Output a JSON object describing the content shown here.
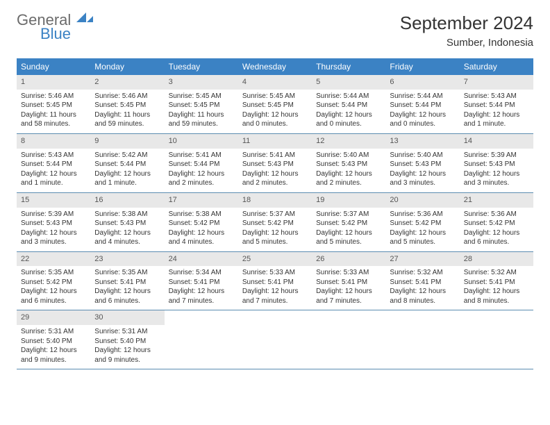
{
  "logo": {
    "text1": "General",
    "text2": "Blue"
  },
  "title": "September 2024",
  "location": "Sumber, Indonesia",
  "colors": {
    "header_bg": "#3b82c4",
    "header_text": "#ffffff",
    "daynum_bg": "#e8e8e8",
    "text": "#333333",
    "week_border": "#5a8bb0"
  },
  "day_labels": [
    "Sunday",
    "Monday",
    "Tuesday",
    "Wednesday",
    "Thursday",
    "Friday",
    "Saturday"
  ],
  "days": [
    {
      "n": "1",
      "sr": "Sunrise: 5:46 AM",
      "ss": "Sunset: 5:45 PM",
      "dl": "Daylight: 11 hours and 58 minutes."
    },
    {
      "n": "2",
      "sr": "Sunrise: 5:46 AM",
      "ss": "Sunset: 5:45 PM",
      "dl": "Daylight: 11 hours and 59 minutes."
    },
    {
      "n": "3",
      "sr": "Sunrise: 5:45 AM",
      "ss": "Sunset: 5:45 PM",
      "dl": "Daylight: 11 hours and 59 minutes."
    },
    {
      "n": "4",
      "sr": "Sunrise: 5:45 AM",
      "ss": "Sunset: 5:45 PM",
      "dl": "Daylight: 12 hours and 0 minutes."
    },
    {
      "n": "5",
      "sr": "Sunrise: 5:44 AM",
      "ss": "Sunset: 5:44 PM",
      "dl": "Daylight: 12 hours and 0 minutes."
    },
    {
      "n": "6",
      "sr": "Sunrise: 5:44 AM",
      "ss": "Sunset: 5:44 PM",
      "dl": "Daylight: 12 hours and 0 minutes."
    },
    {
      "n": "7",
      "sr": "Sunrise: 5:43 AM",
      "ss": "Sunset: 5:44 PM",
      "dl": "Daylight: 12 hours and 1 minute."
    },
    {
      "n": "8",
      "sr": "Sunrise: 5:43 AM",
      "ss": "Sunset: 5:44 PM",
      "dl": "Daylight: 12 hours and 1 minute."
    },
    {
      "n": "9",
      "sr": "Sunrise: 5:42 AM",
      "ss": "Sunset: 5:44 PM",
      "dl": "Daylight: 12 hours and 1 minute."
    },
    {
      "n": "10",
      "sr": "Sunrise: 5:41 AM",
      "ss": "Sunset: 5:44 PM",
      "dl": "Daylight: 12 hours and 2 minutes."
    },
    {
      "n": "11",
      "sr": "Sunrise: 5:41 AM",
      "ss": "Sunset: 5:43 PM",
      "dl": "Daylight: 12 hours and 2 minutes."
    },
    {
      "n": "12",
      "sr": "Sunrise: 5:40 AM",
      "ss": "Sunset: 5:43 PM",
      "dl": "Daylight: 12 hours and 2 minutes."
    },
    {
      "n": "13",
      "sr": "Sunrise: 5:40 AM",
      "ss": "Sunset: 5:43 PM",
      "dl": "Daylight: 12 hours and 3 minutes."
    },
    {
      "n": "14",
      "sr": "Sunrise: 5:39 AM",
      "ss": "Sunset: 5:43 PM",
      "dl": "Daylight: 12 hours and 3 minutes."
    },
    {
      "n": "15",
      "sr": "Sunrise: 5:39 AM",
      "ss": "Sunset: 5:43 PM",
      "dl": "Daylight: 12 hours and 3 minutes."
    },
    {
      "n": "16",
      "sr": "Sunrise: 5:38 AM",
      "ss": "Sunset: 5:43 PM",
      "dl": "Daylight: 12 hours and 4 minutes."
    },
    {
      "n": "17",
      "sr": "Sunrise: 5:38 AM",
      "ss": "Sunset: 5:42 PM",
      "dl": "Daylight: 12 hours and 4 minutes."
    },
    {
      "n": "18",
      "sr": "Sunrise: 5:37 AM",
      "ss": "Sunset: 5:42 PM",
      "dl": "Daylight: 12 hours and 5 minutes."
    },
    {
      "n": "19",
      "sr": "Sunrise: 5:37 AM",
      "ss": "Sunset: 5:42 PM",
      "dl": "Daylight: 12 hours and 5 minutes."
    },
    {
      "n": "20",
      "sr": "Sunrise: 5:36 AM",
      "ss": "Sunset: 5:42 PM",
      "dl": "Daylight: 12 hours and 5 minutes."
    },
    {
      "n": "21",
      "sr": "Sunrise: 5:36 AM",
      "ss": "Sunset: 5:42 PM",
      "dl": "Daylight: 12 hours and 6 minutes."
    },
    {
      "n": "22",
      "sr": "Sunrise: 5:35 AM",
      "ss": "Sunset: 5:42 PM",
      "dl": "Daylight: 12 hours and 6 minutes."
    },
    {
      "n": "23",
      "sr": "Sunrise: 5:35 AM",
      "ss": "Sunset: 5:41 PM",
      "dl": "Daylight: 12 hours and 6 minutes."
    },
    {
      "n": "24",
      "sr": "Sunrise: 5:34 AM",
      "ss": "Sunset: 5:41 PM",
      "dl": "Daylight: 12 hours and 7 minutes."
    },
    {
      "n": "25",
      "sr": "Sunrise: 5:33 AM",
      "ss": "Sunset: 5:41 PM",
      "dl": "Daylight: 12 hours and 7 minutes."
    },
    {
      "n": "26",
      "sr": "Sunrise: 5:33 AM",
      "ss": "Sunset: 5:41 PM",
      "dl": "Daylight: 12 hours and 7 minutes."
    },
    {
      "n": "27",
      "sr": "Sunrise: 5:32 AM",
      "ss": "Sunset: 5:41 PM",
      "dl": "Daylight: 12 hours and 8 minutes."
    },
    {
      "n": "28",
      "sr": "Sunrise: 5:32 AM",
      "ss": "Sunset: 5:41 PM",
      "dl": "Daylight: 12 hours and 8 minutes."
    },
    {
      "n": "29",
      "sr": "Sunrise: 5:31 AM",
      "ss": "Sunset: 5:40 PM",
      "dl": "Daylight: 12 hours and 9 minutes."
    },
    {
      "n": "30",
      "sr": "Sunrise: 5:31 AM",
      "ss": "Sunset: 5:40 PM",
      "dl": "Daylight: 12 hours and 9 minutes."
    }
  ]
}
